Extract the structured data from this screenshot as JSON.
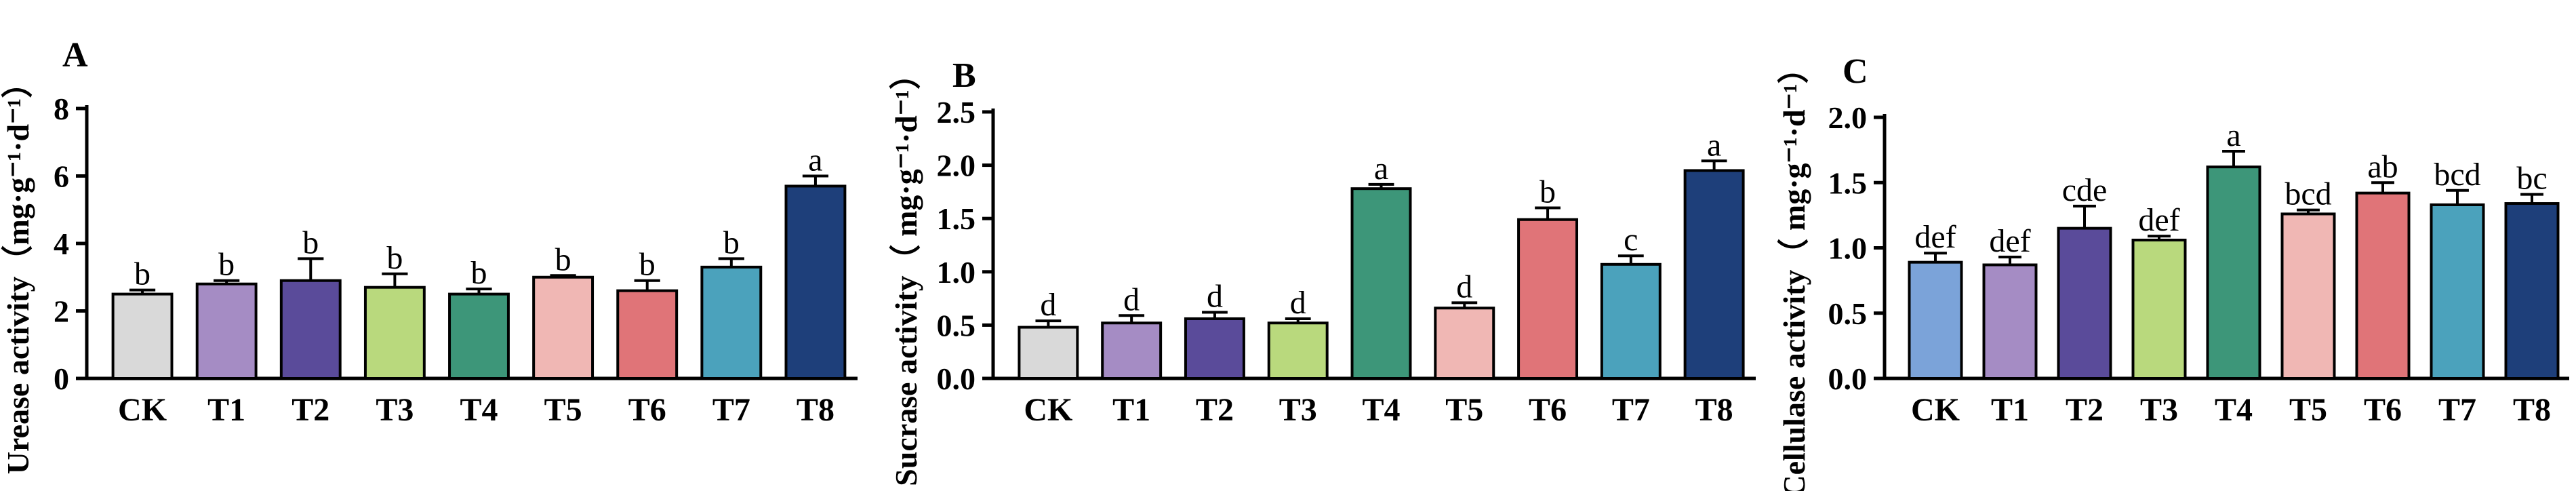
{
  "chart_data": [
    {
      "type": "bar",
      "panel": "A",
      "ylabel": "Urease activity（mg·g⁻¹·d⁻¹）",
      "categories": [
        "CK",
        "T1",
        "T2",
        "T3",
        "T4",
        "T5",
        "T6",
        "T7",
        "T8"
      ],
      "values": [
        2.5,
        2.8,
        2.9,
        2.7,
        2.5,
        3.0,
        2.6,
        3.3,
        5.7
      ],
      "errors": [
        0.12,
        0.1,
        0.65,
        0.4,
        0.15,
        0.05,
        0.3,
        0.25,
        0.3
      ],
      "significance": [
        "b",
        "b",
        "b",
        "b",
        "b",
        "b",
        "b",
        "b",
        "a"
      ],
      "colors": [
        "#d9d9d9",
        "#a58cc4",
        "#5a4b9a",
        "#b9d97d",
        "#3d9679",
        "#f0b7b4",
        "#e07478",
        "#4ba2bc",
        "#1e3f7a"
      ],
      "ylim": [
        0,
        8
      ],
      "yticks": [
        0,
        2,
        4,
        6,
        8
      ]
    },
    {
      "type": "bar",
      "panel": "B",
      "ylabel": "Sucrase activity（ mg·g⁻¹·d⁻¹）",
      "categories": [
        "CK",
        "T1",
        "T2",
        "T3",
        "T4",
        "T5",
        "T6",
        "T7",
        "T8"
      ],
      "values": [
        0.48,
        0.52,
        0.56,
        0.52,
        1.78,
        0.66,
        1.49,
        1.07,
        1.95
      ],
      "errors": [
        0.06,
        0.07,
        0.06,
        0.04,
        0.04,
        0.05,
        0.11,
        0.08,
        0.09
      ],
      "significance": [
        "d",
        "d",
        "d",
        "d",
        "a",
        "d",
        "b",
        "c",
        "a"
      ],
      "colors": [
        "#d9d9d9",
        "#a58cc4",
        "#5a4b9a",
        "#b9d97d",
        "#3d9679",
        "#f0b7b4",
        "#e07478",
        "#4ba2bc",
        "#1e3f7a"
      ],
      "ylim": [
        0,
        2.5
      ],
      "yticks": [
        "0.0",
        "0.5",
        "1.0",
        "1.5",
        "2.0",
        "2.5"
      ]
    },
    {
      "type": "bar",
      "panel": "C",
      "ylabel": "Cellulase activity（ mg·g⁻¹·d⁻¹）",
      "categories": [
        "CK",
        "T1",
        "T2",
        "T3",
        "T4",
        "T5",
        "T6",
        "T7",
        "T8"
      ],
      "values": [
        0.89,
        0.87,
        1.15,
        1.06,
        1.62,
        1.26,
        1.42,
        1.33,
        1.34
      ],
      "errors": [
        0.07,
        0.06,
        0.17,
        0.03,
        0.12,
        0.03,
        0.08,
        0.11,
        0.07
      ],
      "significance": [
        "def",
        "def",
        "cde",
        "def",
        "a",
        "bcd",
        "ab",
        "bcd",
        "bc"
      ],
      "colors": [
        "#7ba3d9",
        "#a58cc4",
        "#5a4b9a",
        "#b9d97d",
        "#3d9679",
        "#f0b7b4",
        "#e07478",
        "#4ba2bc",
        "#1e3f7a"
      ],
      "ylim": [
        0,
        2.0
      ],
      "yticks": [
        "0.0",
        "0.5",
        "1.0",
        "1.5",
        "2.0"
      ]
    }
  ]
}
